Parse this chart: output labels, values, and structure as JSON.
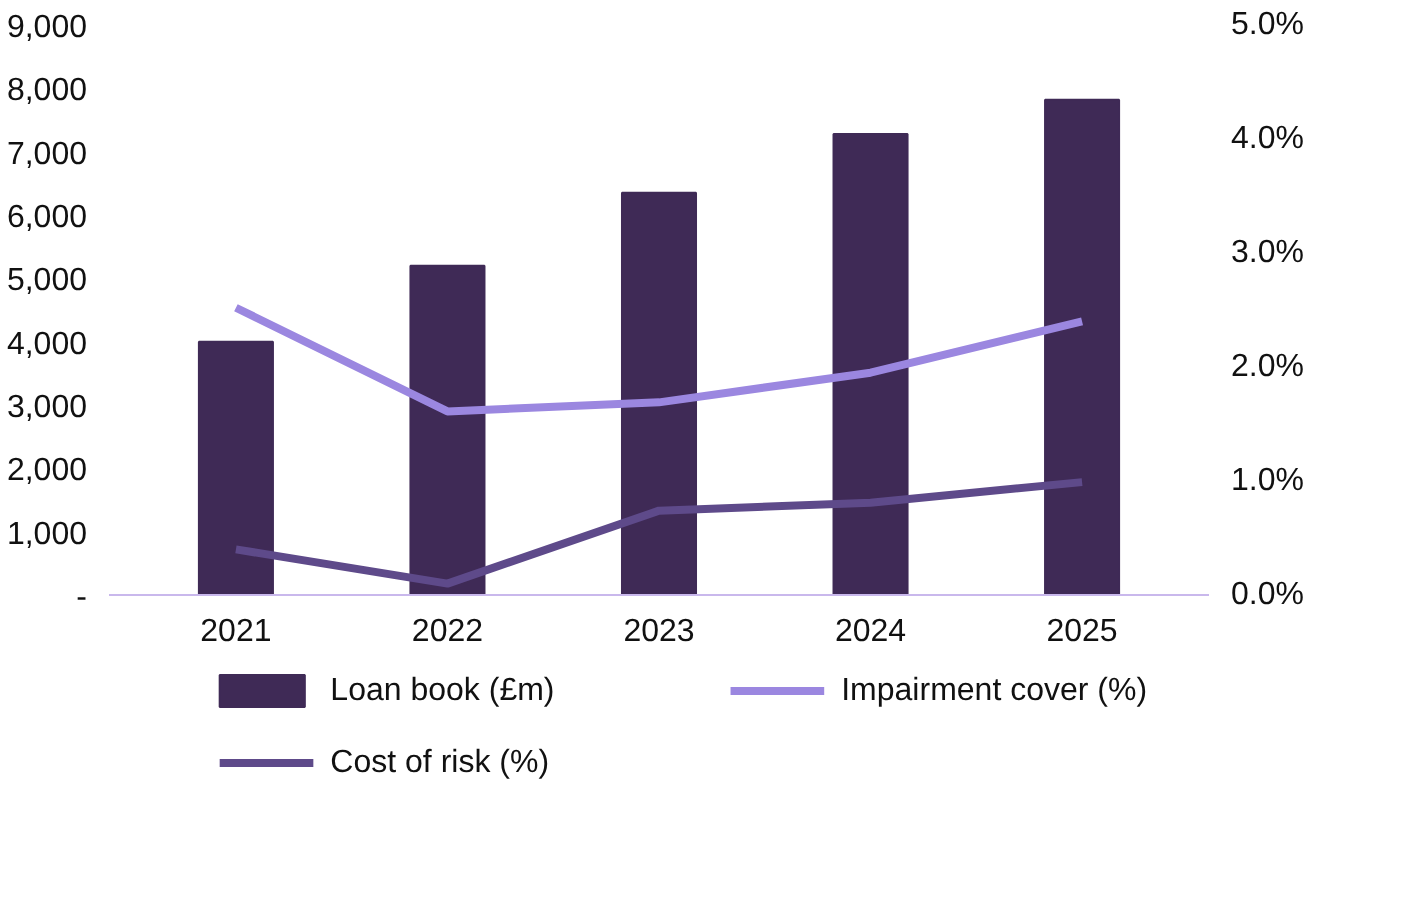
{
  "chart_data": {
    "type": "bar",
    "categories": [
      "2021",
      "2022",
      "2023",
      "2024",
      "2025"
    ],
    "series": [
      {
        "name": "Loan book (£m)",
        "color": "#3f2a56",
        "values": [
          4000,
          5200,
          6350,
          7280,
          7820
        ]
      },
      {
        "name": "Impairment cover (%)",
        "type": "line",
        "axis": "y2",
        "color": "#9b87e0",
        "values": [
          2.52,
          1.61,
          1.69,
          1.95,
          2.4
        ]
      },
      {
        "name": "Cost of risk (%)",
        "type": "line",
        "axis": "y2",
        "color": "#5e4a8a",
        "values": [
          0.4,
          0.1,
          0.74,
          0.81,
          0.99
        ]
      }
    ],
    "ylim": [
      0,
      9000
    ],
    "yticks": [
      {
        "value": 0,
        "label": "-"
      },
      {
        "value": 1000,
        "label": "1,000"
      },
      {
        "value": 2000,
        "label": "2,000"
      },
      {
        "value": 3000,
        "label": "3,000"
      },
      {
        "value": 4000,
        "label": "4,000"
      },
      {
        "value": 5000,
        "label": "5,000"
      },
      {
        "value": 6000,
        "label": "6,000"
      },
      {
        "value": 7000,
        "label": "7,000"
      },
      {
        "value": 8000,
        "label": "8,000"
      },
      {
        "value": 9000,
        "label": "9,000"
      }
    ],
    "y2lim": [
      0,
      5
    ],
    "y2ticks": [
      {
        "value": 0,
        "label": "0.0%"
      },
      {
        "value": 1,
        "label": "1.0%"
      },
      {
        "value": 2,
        "label": "2.0%"
      },
      {
        "value": 3,
        "label": "3.0%"
      },
      {
        "value": 4,
        "label": "4.0%"
      },
      {
        "value": 5,
        "label": "5.0%"
      }
    ],
    "legend": "bottom",
    "grid": false,
    "marker": "none",
    "line_style": "solid"
  }
}
